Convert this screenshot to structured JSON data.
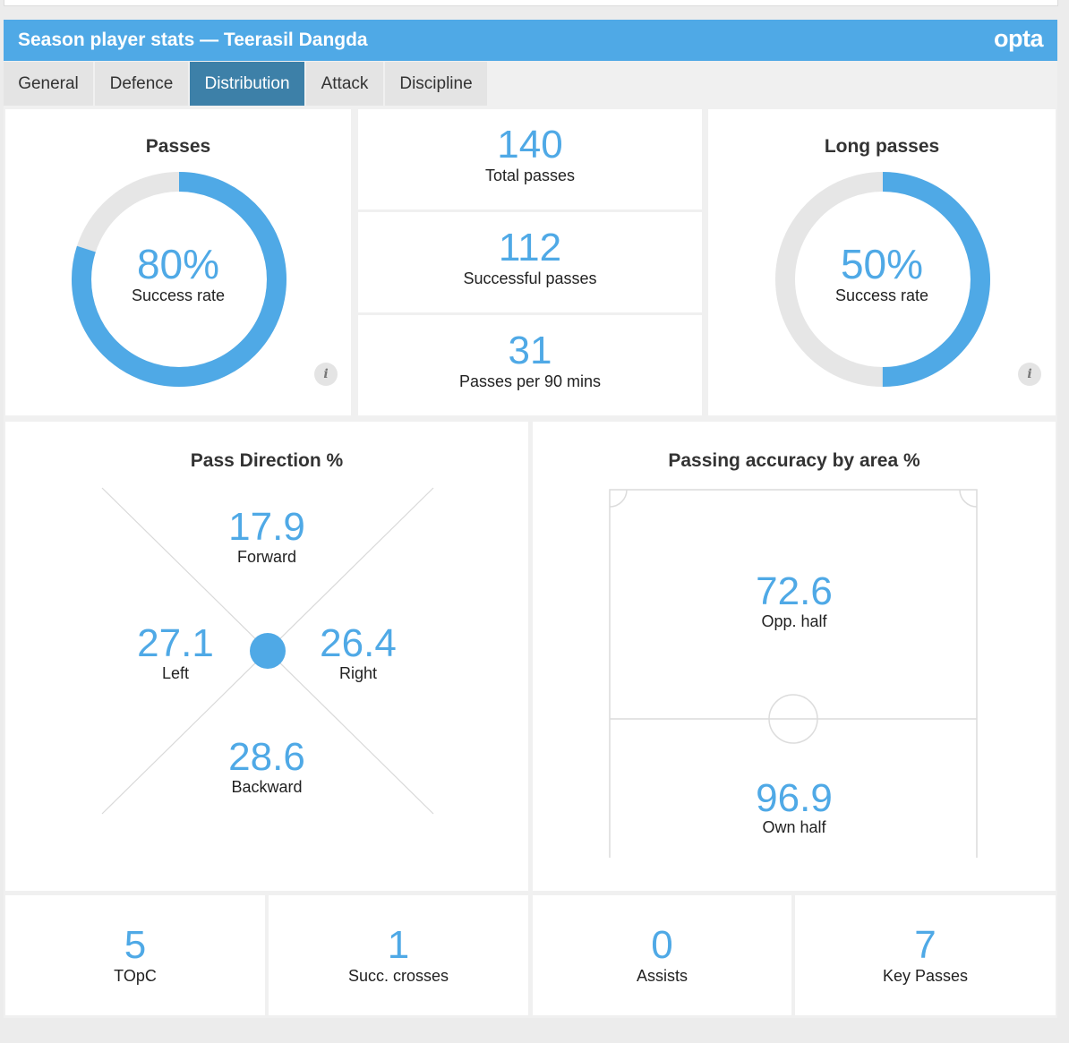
{
  "header": {
    "title": "Season player stats — Teerasil Dangda",
    "brand": "opta",
    "color": "#4fa9e6"
  },
  "tabs": [
    {
      "label": "General",
      "active": false
    },
    {
      "label": "Defence",
      "active": false
    },
    {
      "label": "Distribution",
      "active": true
    },
    {
      "label": "Attack",
      "active": false
    },
    {
      "label": "Discipline",
      "active": false
    }
  ],
  "passes": {
    "title": "Passes",
    "percent_label": "80%",
    "success_fraction": 0.8,
    "caption": "Success rate",
    "info_icon": "i"
  },
  "pass_counts": [
    {
      "value": "140",
      "label": "Total passes"
    },
    {
      "value": "112",
      "label": "Successful passes"
    },
    {
      "value": "31",
      "label": "Passes per 90 mins"
    }
  ],
  "long_passes": {
    "title": "Long passes",
    "percent_label": "50%",
    "success_fraction": 0.5,
    "caption": "Success rate",
    "info_icon": "i"
  },
  "pass_direction": {
    "title": "Pass Direction %",
    "forward": {
      "value": "17.9",
      "label": "Forward"
    },
    "left": {
      "value": "27.1",
      "label": "Left"
    },
    "right": {
      "value": "26.4",
      "label": "Right"
    },
    "backward": {
      "value": "28.6",
      "label": "Backward"
    }
  },
  "accuracy_by_area": {
    "title": "Passing accuracy by area %",
    "opp_half": {
      "value": "72.6",
      "label": "Opp. half"
    },
    "own_half": {
      "value": "96.9",
      "label": "Own half"
    }
  },
  "bottom_stats": [
    {
      "value": "5",
      "label": "TOpC"
    },
    {
      "value": "1",
      "label": "Succ. crosses"
    },
    {
      "value": "0",
      "label": "Assists"
    },
    {
      "value": "7",
      "label": "Key Passes"
    }
  ],
  "colors": {
    "accent": "#4fa9e6",
    "active_tab": "#3d80a8",
    "track": "#e6e6e6"
  }
}
